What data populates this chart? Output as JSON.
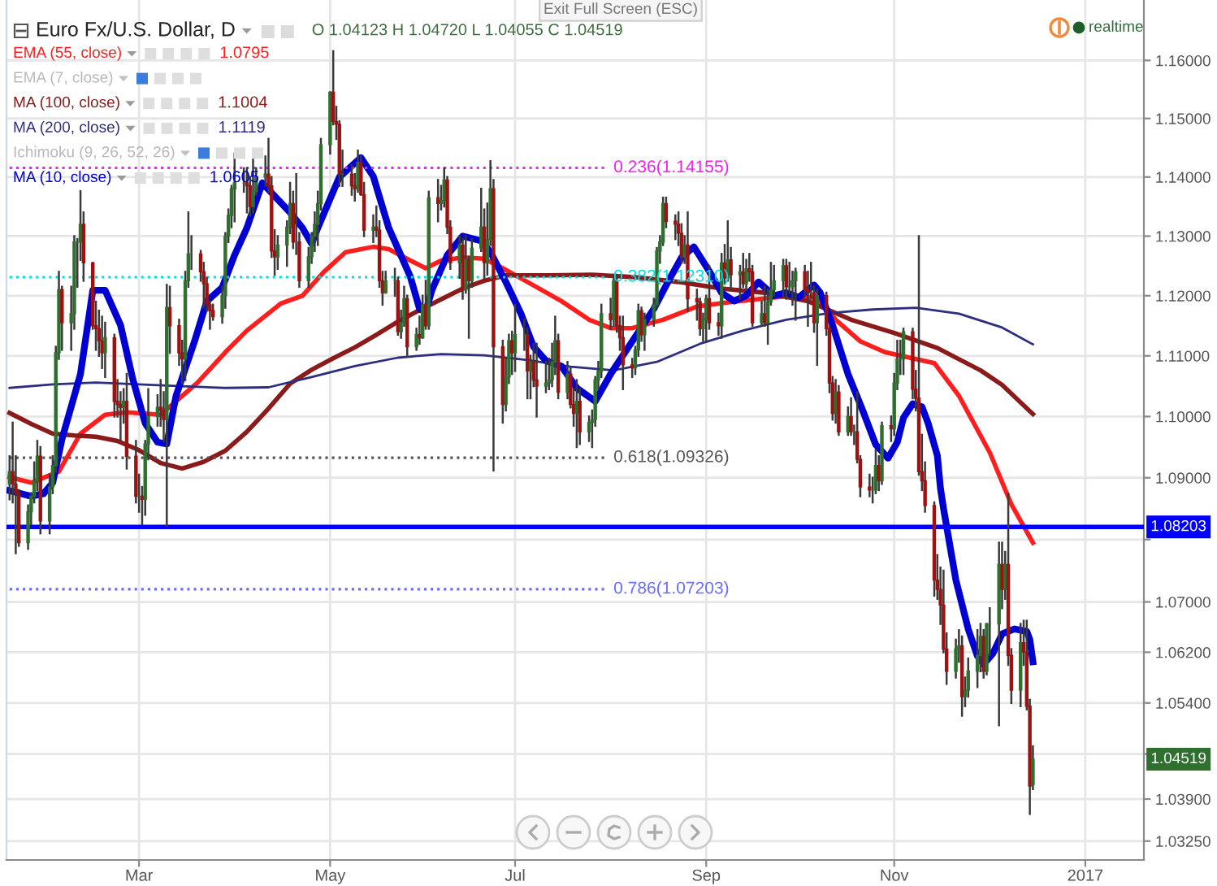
{
  "chart_data": {
    "type": "candlestick",
    "title": "Euro Fx/U.S. Dollar, D",
    "subtitle": "O 1.04123 H 1.04720 L 1.04055 C 1.04519",
    "x": [
      "2016-01-19",
      "2016-01-20",
      "2016-01-21",
      "2016-01-22",
      "2016-01-25",
      "2016-01-26",
      "2016-01-27",
      "2016-01-28",
      "2016-01-29",
      "2016-02-01",
      "2016-02-02",
      "2016-02-03",
      "2016-02-04",
      "2016-02-05",
      "2016-02-08",
      "2016-02-09",
      "2016-02-10",
      "2016-02-11",
      "2016-02-12",
      "2016-02-15",
      "2016-02-16",
      "2016-02-17",
      "2016-02-18",
      "2016-02-19",
      "2016-02-22",
      "2016-02-23",
      "2016-02-24",
      "2016-02-25",
      "2016-02-26",
      "2016-02-29",
      "2016-03-01",
      "2016-03-02",
      "2016-03-03",
      "2016-03-04",
      "2016-03-07",
      "2016-03-08",
      "2016-03-09",
      "2016-03-10",
      "2016-03-11",
      "2016-03-14",
      "2016-03-15",
      "2016-03-16",
      "2016-03-17",
      "2016-03-18",
      "2016-03-21",
      "2016-03-22",
      "2016-03-23",
      "2016-03-24",
      "2016-03-25",
      "2016-03-28",
      "2016-03-29",
      "2016-03-30",
      "2016-03-31",
      "2016-04-01",
      "2016-04-04",
      "2016-04-05",
      "2016-04-06",
      "2016-04-07",
      "2016-04-08",
      "2016-04-11",
      "2016-04-12",
      "2016-04-13",
      "2016-04-14",
      "2016-04-15",
      "2016-04-18",
      "2016-04-19",
      "2016-04-20",
      "2016-04-21",
      "2016-04-22",
      "2016-04-25",
      "2016-04-26",
      "2016-04-27",
      "2016-04-28",
      "2016-04-29",
      "2016-05-02",
      "2016-05-03",
      "2016-05-04",
      "2016-05-05",
      "2016-05-06",
      "2016-05-09",
      "2016-05-10",
      "2016-05-11",
      "2016-05-12",
      "2016-05-13",
      "2016-05-16",
      "2016-05-17",
      "2016-05-18",
      "2016-05-19",
      "2016-05-20",
      "2016-05-23",
      "2016-05-24",
      "2016-05-25",
      "2016-05-26",
      "2016-05-27",
      "2016-05-30",
      "2016-05-31",
      "2016-06-01",
      "2016-06-02",
      "2016-06-03",
      "2016-06-06",
      "2016-06-07",
      "2016-06-08",
      "2016-06-09",
      "2016-06-10",
      "2016-06-13",
      "2016-06-14",
      "2016-06-15",
      "2016-06-16",
      "2016-06-17",
      "2016-06-20",
      "2016-06-21",
      "2016-06-22",
      "2016-06-23",
      "2016-06-24",
      "2016-06-27",
      "2016-06-28",
      "2016-06-29",
      "2016-06-30",
      "2016-07-01",
      "2016-07-04",
      "2016-07-05",
      "2016-07-06",
      "2016-07-07",
      "2016-07-08",
      "2016-07-11",
      "2016-07-12",
      "2016-07-13",
      "2016-07-14",
      "2016-07-15",
      "2016-07-18",
      "2016-07-19",
      "2016-07-20",
      "2016-07-21",
      "2016-07-22",
      "2016-07-25",
      "2016-07-26",
      "2016-07-27",
      "2016-07-28",
      "2016-07-29",
      "2016-08-01",
      "2016-08-02",
      "2016-08-03",
      "2016-08-04",
      "2016-08-05",
      "2016-08-08",
      "2016-08-09",
      "2016-08-10",
      "2016-08-11",
      "2016-08-12",
      "2016-08-15",
      "2016-08-16",
      "2016-08-17",
      "2016-08-18",
      "2016-08-19",
      "2016-08-22",
      "2016-08-23",
      "2016-08-24",
      "2016-08-25",
      "2016-08-26",
      "2016-08-29",
      "2016-08-30",
      "2016-08-31",
      "2016-09-01",
      "2016-09-02",
      "2016-09-05",
      "2016-09-06",
      "2016-09-07",
      "2016-09-08",
      "2016-09-09",
      "2016-09-12",
      "2016-09-13",
      "2016-09-14",
      "2016-09-15",
      "2016-09-16",
      "2016-09-19",
      "2016-09-20",
      "2016-09-21",
      "2016-09-22",
      "2016-09-23",
      "2016-09-26",
      "2016-09-27",
      "2016-09-28",
      "2016-09-29",
      "2016-09-30",
      "2016-10-03",
      "2016-10-04",
      "2016-10-05",
      "2016-10-06",
      "2016-10-07",
      "2016-10-10",
      "2016-10-11",
      "2016-10-12",
      "2016-10-13",
      "2016-10-14",
      "2016-10-17",
      "2016-10-18",
      "2016-10-19",
      "2016-10-20",
      "2016-10-21",
      "2016-10-24",
      "2016-10-25",
      "2016-10-26",
      "2016-10-27",
      "2016-10-28",
      "2016-10-31",
      "2016-11-01",
      "2016-11-02",
      "2016-11-03",
      "2016-11-04",
      "2016-11-07",
      "2016-11-08",
      "2016-11-09",
      "2016-11-10",
      "2016-11-11",
      "2016-11-14",
      "2016-11-15",
      "2016-11-16",
      "2016-11-17",
      "2016-11-18",
      "2016-11-21",
      "2016-11-22",
      "2016-11-23",
      "2016-11-24",
      "2016-11-25",
      "2016-11-28",
      "2016-11-29",
      "2016-11-30",
      "2016-12-01",
      "2016-12-02",
      "2016-12-05",
      "2016-12-06",
      "2016-12-07",
      "2016-12-08",
      "2016-12-09",
      "2016-12-12",
      "2016-12-13",
      "2016-12-14",
      "2016-12-15",
      "2016-12-16"
    ],
    "ohlc": [
      [
        1.089,
        1.0935,
        1.0865,
        1.091
      ],
      [
        1.091,
        1.099,
        1.086,
        1.089
      ],
      [
        1.089,
        1.0935,
        1.0778,
        1.0875
      ],
      [
        1.0875,
        1.088,
        1.079,
        1.0795
      ],
      [
        1.0795,
        1.0855,
        1.0785,
        1.0845
      ],
      [
        1.0845,
        1.0875,
        1.0825,
        1.087
      ],
      [
        1.087,
        1.0925,
        1.086,
        1.0895
      ],
      [
        1.0895,
        1.096,
        1.088,
        1.0935
      ],
      [
        1.0935,
        1.095,
        1.081,
        1.083
      ],
      [
        1.083,
        1.0905,
        1.081,
        1.0885
      ],
      [
        1.0885,
        1.0935,
        1.0875,
        1.092
      ],
      [
        1.092,
        1.1115,
        1.091,
        1.1105
      ],
      [
        1.1105,
        1.124,
        1.1095,
        1.121
      ],
      [
        1.121,
        1.1215,
        1.111,
        1.1155
      ],
      [
        1.1155,
        1.1215,
        1.111,
        1.117
      ],
      [
        1.117,
        1.13,
        1.1145,
        1.129
      ],
      [
        1.129,
        1.1295,
        1.1215,
        1.129
      ],
      [
        1.129,
        1.1376,
        1.126,
        1.132
      ],
      [
        1.132,
        1.134,
        1.1225,
        1.1255
      ],
      [
        1.1255,
        1.1255,
        1.1145,
        1.115
      ],
      [
        1.115,
        1.119,
        1.111,
        1.1145
      ],
      [
        1.1145,
        1.1175,
        1.11,
        1.1125
      ],
      [
        1.1125,
        1.1165,
        1.108,
        1.1105
      ],
      [
        1.1105,
        1.1155,
        1.1065,
        1.113
      ],
      [
        1.113,
        1.1135,
        1.1,
        1.1025
      ],
      [
        1.1025,
        1.106,
        1.1,
        1.102
      ],
      [
        1.102,
        1.104,
        1.096,
        1.1015
      ],
      [
        1.1015,
        1.1045,
        1.099,
        1.1025
      ],
      [
        1.1025,
        1.107,
        1.0915,
        1.0935
      ],
      [
        1.0935,
        1.096,
        1.086,
        1.087
      ],
      [
        1.087,
        1.0905,
        1.0845,
        1.087
      ],
      [
        1.087,
        1.0885,
        1.0825,
        1.0865
      ],
      [
        1.0865,
        1.096,
        1.084,
        1.0955
      ],
      [
        1.0955,
        1.1045,
        1.093,
        1.1
      ],
      [
        1.1,
        1.1035,
        1.0985,
        1.1015
      ],
      [
        1.1015,
        1.106,
        1.0985,
        1.101
      ],
      [
        1.101,
        1.104,
        1.096,
        1.0995
      ],
      [
        1.0995,
        1.1218,
        1.0822,
        1.118
      ],
      [
        1.118,
        1.1215,
        1.1105,
        1.115
      ],
      [
        1.115,
        1.116,
        1.1085,
        1.1105
      ],
      [
        1.1105,
        1.1125,
        1.1055,
        1.1095
      ],
      [
        1.1095,
        1.124,
        1.106,
        1.1225
      ],
      [
        1.1225,
        1.134,
        1.1215,
        1.127
      ],
      [
        1.127,
        1.13,
        1.1245,
        1.127
      ],
      [
        1.127,
        1.1275,
        1.1225,
        1.124
      ],
      [
        1.124,
        1.1255,
        1.118,
        1.122
      ],
      [
        1.122,
        1.123,
        1.1175,
        1.1185
      ],
      [
        1.1185,
        1.119,
        1.1145,
        1.1175
      ],
      [
        1.1175,
        1.1185,
        1.116,
        1.1165
      ],
      [
        1.1165,
        1.1215,
        1.1155,
        1.12
      ],
      [
        1.12,
        1.1305,
        1.118,
        1.13
      ],
      [
        1.13,
        1.1345,
        1.129,
        1.1335
      ],
      [
        1.1335,
        1.1385,
        1.1315,
        1.138
      ],
      [
        1.138,
        1.144,
        1.1325,
        1.139
      ],
      [
        1.139,
        1.1415,
        1.1375,
        1.139
      ],
      [
        1.139,
        1.1415,
        1.134,
        1.1385
      ],
      [
        1.1385,
        1.14,
        1.1335,
        1.135
      ],
      [
        1.135,
        1.144,
        1.134,
        1.1375
      ],
      [
        1.1375,
        1.1415,
        1.137,
        1.14
      ],
      [
        1.14,
        1.1435,
        1.1385,
        1.1405
      ],
      [
        1.1405,
        1.1465,
        1.1375,
        1.1385
      ],
      [
        1.1385,
        1.14,
        1.1265,
        1.1275
      ],
      [
        1.1275,
        1.131,
        1.1235,
        1.1265
      ],
      [
        1.1265,
        1.13,
        1.1245,
        1.1285
      ],
      [
        1.1285,
        1.1325,
        1.125,
        1.1315
      ],
      [
        1.1315,
        1.139,
        1.1305,
        1.1355
      ],
      [
        1.1355,
        1.1375,
        1.128,
        1.129
      ],
      [
        1.129,
        1.1405,
        1.127,
        1.129
      ],
      [
        1.129,
        1.1305,
        1.1215,
        1.1225
      ],
      [
        1.1225,
        1.128,
        1.1215,
        1.1265
      ],
      [
        1.1265,
        1.1305,
        1.1255,
        1.13
      ],
      [
        1.13,
        1.134,
        1.1275,
        1.132
      ],
      [
        1.132,
        1.1375,
        1.1285,
        1.1355
      ],
      [
        1.1355,
        1.1465,
        1.1345,
        1.1455
      ],
      [
        1.1455,
        1.1545,
        1.144,
        1.1545
      ],
      [
        1.1545,
        1.1616,
        1.149,
        1.1495
      ],
      [
        1.1495,
        1.152,
        1.1465,
        1.149
      ],
      [
        1.149,
        1.1495,
        1.1385,
        1.1405
      ],
      [
        1.1405,
        1.1445,
        1.1385,
        1.1405
      ],
      [
        1.1405,
        1.142,
        1.137,
        1.1385
      ],
      [
        1.1385,
        1.1405,
        1.136,
        1.138
      ],
      [
        1.138,
        1.1445,
        1.1375,
        1.1425
      ],
      [
        1.1425,
        1.1435,
        1.137,
        1.137
      ],
      [
        1.137,
        1.139,
        1.13,
        1.131
      ],
      [
        1.131,
        1.1335,
        1.129,
        1.1315
      ],
      [
        1.1315,
        1.135,
        1.13,
        1.131
      ],
      [
        1.131,
        1.1325,
        1.1215,
        1.1225
      ],
      [
        1.1225,
        1.124,
        1.1185,
        1.1205
      ],
      [
        1.1205,
        1.124,
        1.1205,
        1.1225
      ],
      [
        1.1225,
        1.1245,
        1.12,
        1.1225
      ],
      [
        1.1225,
        1.123,
        1.1135,
        1.114
      ],
      [
        1.114,
        1.1175,
        1.113,
        1.1155
      ],
      [
        1.1155,
        1.1215,
        1.115,
        1.1195
      ],
      [
        1.1195,
        1.12,
        1.11,
        1.1115
      ],
      [
        1.1115,
        1.1145,
        1.111,
        1.1135
      ],
      [
        1.1135,
        1.1165,
        1.112,
        1.113
      ],
      [
        1.113,
        1.12,
        1.113,
        1.1185
      ],
      [
        1.1185,
        1.1225,
        1.1145,
        1.115
      ],
      [
        1.115,
        1.1375,
        1.1145,
        1.1365
      ],
      [
        1.1365,
        1.1395,
        1.1325,
        1.1355
      ],
      [
        1.1355,
        1.1385,
        1.1345,
        1.136
      ],
      [
        1.136,
        1.1415,
        1.135,
        1.1395
      ],
      [
        1.1395,
        1.14,
        1.1305,
        1.1315
      ],
      [
        1.1315,
        1.1325,
        1.1245,
        1.1255
      ],
      [
        1.1255,
        1.13,
        1.123,
        1.1285
      ],
      [
        1.1285,
        1.1295,
        1.1195,
        1.121
      ],
      [
        1.121,
        1.13,
        1.1205,
        1.126
      ],
      [
        1.126,
        1.1265,
        1.113,
        1.1225
      ],
      [
        1.1225,
        1.1295,
        1.1215,
        1.128
      ],
      [
        1.128,
        1.138,
        1.1275,
        1.1315
      ],
      [
        1.1315,
        1.1345,
        1.123,
        1.1255
      ],
      [
        1.1255,
        1.1355,
        1.1235,
        1.1295
      ],
      [
        1.1295,
        1.1427,
        1.1285,
        1.138
      ],
      [
        1.138,
        1.1395,
        1.0912,
        1.1115
      ],
      [
        1.1115,
        1.1125,
        1.099,
        1.102
      ],
      [
        1.102,
        1.1095,
        1.101,
        1.1065
      ],
      [
        1.1065,
        1.1135,
        1.1055,
        1.1125
      ],
      [
        1.1125,
        1.114,
        1.107,
        1.1105
      ],
      [
        1.1105,
        1.1185,
        1.1075,
        1.1135
      ],
      [
        1.1135,
        1.116,
        1.111,
        1.1135
      ],
      [
        1.1135,
        1.1145,
        1.103,
        1.1075
      ],
      [
        1.1075,
        1.11,
        1.103,
        1.109
      ],
      [
        1.109,
        1.112,
        1.105,
        1.106
      ],
      [
        1.106,
        1.112,
        1.1,
        1.105
      ],
      [
        1.105,
        1.109,
        1.104,
        1.1055
      ],
      [
        1.1055,
        1.1095,
        1.1045,
        1.106
      ],
      [
        1.106,
        1.112,
        1.105,
        1.109
      ],
      [
        1.109,
        1.1165,
        1.107,
        1.1125
      ],
      [
        1.1125,
        1.1135,
        1.103,
        1.104
      ],
      [
        1.104,
        1.109,
        1.103,
        1.107
      ],
      [
        1.107,
        1.108,
        1.1015,
        1.102
      ],
      [
        1.102,
        1.1045,
        1.0985,
        1.1005
      ],
      [
        1.1005,
        1.106,
        1.095,
        1.1025
      ],
      [
        1.1025,
        1.1045,
        1.0955,
        1.0975
      ],
      [
        1.0975,
        1.1,
        1.096,
        1.099
      ],
      [
        1.099,
        1.101,
        1.095,
        1.0995
      ],
      [
        1.0995,
        1.1065,
        1.0985,
        1.106
      ],
      [
        1.106,
        1.109,
        1.1045,
        1.1075
      ],
      [
        1.1075,
        1.1185,
        1.1065,
        1.117
      ],
      [
        1.117,
        1.1195,
        1.1145,
        1.116
      ],
      [
        1.116,
        1.1235,
        1.115,
        1.1225
      ],
      [
        1.1225,
        1.1235,
        1.114,
        1.115
      ],
      [
        1.115,
        1.1165,
        1.111,
        1.113
      ],
      [
        1.113,
        1.1165,
        1.1045,
        1.1085
      ],
      [
        1.1085,
        1.1095,
        1.1065,
        1.108
      ],
      [
        1.108,
        1.1115,
        1.107,
        1.111
      ],
      [
        1.111,
        1.1185,
        1.11,
        1.1175
      ],
      [
        1.1175,
        1.118,
        1.1125,
        1.1135
      ],
      [
        1.1135,
        1.117,
        1.111,
        1.116
      ],
      [
        1.116,
        1.1195,
        1.115,
        1.1185
      ],
      [
        1.1185,
        1.128,
        1.118,
        1.1275
      ],
      [
        1.1275,
        1.13,
        1.1255,
        1.129
      ],
      [
        1.129,
        1.1365,
        1.1285,
        1.1355
      ],
      [
        1.1355,
        1.1365,
        1.1315,
        1.1325
      ],
      [
        1.1325,
        1.1335,
        1.1295,
        1.132
      ],
      [
        1.132,
        1.134,
        1.1285,
        1.1305
      ],
      [
        1.1305,
        1.132,
        1.1255,
        1.1265
      ],
      [
        1.1265,
        1.13,
        1.1255,
        1.1285
      ],
      [
        1.1285,
        1.134,
        1.1175,
        1.1195
      ],
      [
        1.1195,
        1.121,
        1.116,
        1.119
      ],
      [
        1.119,
        1.1195,
        1.1135,
        1.1145
      ],
      [
        1.1145,
        1.117,
        1.1125,
        1.116
      ],
      [
        1.116,
        1.12,
        1.1125,
        1.1195
      ],
      [
        1.1195,
        1.125,
        1.1145,
        1.1155
      ],
      [
        1.1155,
        1.117,
        1.1135,
        1.115
      ],
      [
        1.115,
        1.127,
        1.113,
        1.1255
      ],
      [
        1.1255,
        1.1285,
        1.122,
        1.123
      ],
      [
        1.123,
        1.1325,
        1.1225,
        1.126
      ],
      [
        1.126,
        1.128,
        1.121,
        1.1235
      ],
      [
        1.1235,
        1.125,
        1.1195,
        1.124
      ],
      [
        1.124,
        1.127,
        1.1215,
        1.122
      ],
      [
        1.122,
        1.126,
        1.121,
        1.1245
      ],
      [
        1.1245,
        1.127,
        1.1225,
        1.124
      ],
      [
        1.124,
        1.125,
        1.115,
        1.1155
      ],
      [
        1.1155,
        1.119,
        1.115,
        1.117
      ],
      [
        1.117,
        1.1215,
        1.115,
        1.1155
      ],
      [
        1.1155,
        1.121,
        1.112,
        1.119
      ],
      [
        1.119,
        1.1255,
        1.1185,
        1.121
      ],
      [
        1.121,
        1.125,
        1.12,
        1.1225
      ],
      [
        1.1225,
        1.126,
        1.12,
        1.125
      ],
      [
        1.125,
        1.126,
        1.1195,
        1.1215
      ],
      [
        1.1215,
        1.1255,
        1.1205,
        1.1215
      ],
      [
        1.1215,
        1.124,
        1.1185,
        1.1225
      ],
      [
        1.1225,
        1.1245,
        1.116,
        1.124
      ],
      [
        1.124,
        1.125,
        1.12,
        1.121
      ],
      [
        1.121,
        1.124,
        1.115,
        1.1205
      ],
      [
        1.1205,
        1.1255,
        1.1195,
        1.1205
      ],
      [
        1.1205,
        1.1215,
        1.114,
        1.1155
      ],
      [
        1.1155,
        1.121,
        1.1085,
        1.12
      ],
      [
        1.12,
        1.1205,
        1.1135,
        1.1145
      ],
      [
        1.1145,
        1.115,
        1.104,
        1.1055
      ],
      [
        1.1055,
        1.1065,
        1.0995,
        1.1005
      ],
      [
        1.1005,
        1.106,
        1.099,
        1.104
      ],
      [
        1.104,
        1.105,
        1.097,
        1.0975
      ],
      [
        1.0975,
        1.1015,
        1.097,
        1.1
      ],
      [
        1.1,
        1.103,
        1.097,
        1.0975
      ],
      [
        1.0975,
        1.0985,
        1.0955,
        1.0975
      ],
      [
        1.0975,
        1.104,
        1.0925,
        1.093
      ],
      [
        1.093,
        1.0935,
        1.087,
        1.0885
      ],
      [
        1.0885,
        1.0905,
        1.087,
        1.088
      ],
      [
        1.088,
        1.09,
        1.086,
        1.088
      ],
      [
        1.088,
        1.0945,
        1.0875,
        1.092
      ],
      [
        1.092,
        1.0935,
        1.088,
        1.0895
      ],
      [
        1.0895,
        1.099,
        1.089,
        1.0985
      ],
      [
        1.0985,
        1.1,
        1.096,
        1.098
      ],
      [
        1.098,
        1.107,
        1.097,
        1.1055
      ],
      [
        1.1055,
        1.1125,
        1.1045,
        1.1095
      ],
      [
        1.1095,
        1.1125,
        1.107,
        1.1095
      ],
      [
        1.1095,
        1.1145,
        1.107,
        1.114
      ],
      [
        1.114,
        1.1145,
        1.103,
        1.1045
      ],
      [
        1.1045,
        1.1075,
        1.101,
        1.103
      ],
      [
        1.103,
        1.13,
        1.0905,
        1.091
      ],
      [
        1.091,
        1.097,
        1.088,
        1.0895
      ],
      [
        1.0895,
        1.0925,
        1.0845,
        1.0855
      ],
      [
        1.0855,
        1.086,
        1.071,
        1.0735
      ],
      [
        1.0735,
        1.0775,
        1.0705,
        1.072
      ],
      [
        1.072,
        1.0755,
        1.0665,
        1.0695
      ],
      [
        1.0695,
        1.075,
        1.062,
        1.0625
      ],
      [
        1.0625,
        1.065,
        1.057,
        1.059
      ],
      [
        1.059,
        1.064,
        1.058,
        1.0625
      ],
      [
        1.0625,
        1.0655,
        1.0605,
        1.063
      ],
      [
        1.063,
        1.0645,
        1.052,
        1.055
      ],
      [
        1.055,
        1.058,
        1.0535,
        1.056
      ],
      [
        1.056,
        1.061,
        1.055,
        1.059
      ],
      [
        1.059,
        1.0655,
        1.0565,
        1.0615
      ],
      [
        1.0615,
        1.0665,
        1.059,
        1.0645
      ],
      [
        1.0645,
        1.0655,
        1.058,
        1.059
      ],
      [
        1.059,
        1.0665,
        1.0585,
        1.0665
      ],
      [
        1.0665,
        1.069,
        1.0615,
        1.0665
      ],
      [
        1.0665,
        1.0795,
        1.0505,
        1.076
      ],
      [
        1.076,
        1.0795,
        1.069,
        1.072
      ],
      [
        1.072,
        1.078,
        1.0705,
        1.076
      ],
      [
        1.076,
        1.0874,
        1.06,
        1.0615
      ],
      [
        1.0615,
        1.0625,
        1.054,
        1.056
      ],
      [
        1.056,
        1.0665,
        1.0535,
        1.0635
      ],
      [
        1.0635,
        1.067,
        1.06,
        1.062
      ],
      [
        1.062,
        1.067,
        1.053,
        1.0535
      ],
      [
        1.0535,
        1.0545,
        1.0367,
        1.041
      ],
      [
        1.04123,
        1.0472,
        1.04055,
        1.04519
      ]
    ],
    "colors": [
      "#2f6f2f",
      "#9c1212",
      "#9c1212",
      "#9c1212",
      "#2f6f2f",
      "#2f6f2f",
      "#2f6f2f",
      "#2f6f2f",
      "#9c1212",
      "#2f6f2f",
      "#2f6f2f",
      "#2f6f2f",
      "#2f6f2f",
      "#9c1212",
      "#2f6f2f",
      "#2f6f2f",
      "#2f6f2f",
      "#2f6f2f",
      "#9c1212",
      "#9c1212",
      "#9c1212",
      "#9c1212",
      "#9c1212",
      "#2f6f2f",
      "#9c1212",
      "#9c1212",
      "#9c1212",
      "#2f6f2f",
      "#9c1212",
      "#9c1212",
      "#2f6f2f",
      "#9c1212",
      "#2f6f2f",
      "#2f6f2f",
      "#2f6f2f",
      "#9c1212",
      "#9c1212",
      "#2f6f2f",
      "#9c1212",
      "#9c1212",
      "#9c1212",
      "#2f6f2f",
      "#2f6f2f",
      "#2f6f2f",
      "#9c1212",
      "#9c1212",
      "#9c1212",
      "#9c1212",
      "#9c1212",
      "#2f6f2f",
      "#2f6f2f",
      "#2f6f2f",
      "#2f6f2f",
      "#2f6f2f",
      "#2f6f2f",
      "#9c1212",
      "#9c1212",
      "#2f6f2f",
      "#2f6f2f",
      "#2f6f2f",
      "#9c1212",
      "#9c1212",
      "#9c1212",
      "#2f6f2f",
      "#2f6f2f",
      "#2f6f2f",
      "#9c1212",
      "#2f6f2f",
      "#9c1212",
      "#2f6f2f",
      "#2f6f2f",
      "#2f6f2f",
      "#2f6f2f",
      "#2f6f2f",
      "#2f6f2f",
      "#9c1212",
      "#9c1212",
      "#9c1212",
      "#2f6f2f",
      "#9c1212",
      "#9c1212",
      "#2f6f2f",
      "#9c1212",
      "#9c1212",
      "#2f6f2f",
      "#9c1212",
      "#9c1212",
      "#9c1212",
      "#2f6f2f",
      "#2f6f2f",
      "#9c1212",
      "#2f6f2f",
      "#2f6f2f",
      "#9c1212",
      "#2f6f2f",
      "#9c1212",
      "#2f6f2f",
      "#9c1212",
      "#2f6f2f",
      "#9c1212",
      "#2f6f2f",
      "#2f6f2f",
      "#9c1212",
      "#9c1212",
      "#2f6f2f",
      "#9c1212",
      "#2f6f2f",
      "#9c1212",
      "#2f6f2f",
      "#2f6f2f",
      "#9c1212",
      "#2f6f2f",
      "#2f6f2f",
      "#9c1212",
      "#9c1212",
      "#2f6f2f",
      "#2f6f2f",
      "#9c1212",
      "#2f6f2f",
      "#2f6f2f",
      "#9c1212",
      "#2f6f2f",
      "#9c1212",
      "#9c1212",
      "#2f6f2f",
      "#2f6f2f",
      "#2f6f2f",
      "#2f6f2f",
      "#9c1212",
      "#2f6f2f",
      "#9c1212",
      "#9c1212",
      "#2f6f2f",
      "#9c1212",
      "#2f6f2f",
      "#2f6f2f",
      "#2f6f2f",
      "#2f6f2f",
      "#2f6f2f",
      "#9c1212",
      "#2f6f2f",
      "#9c1212",
      "#9c1212",
      "#9c1212",
      "#9c1212",
      "#2f6f2f",
      "#2f6f2f",
      "#9c1212",
      "#2f6f2f",
      "#2f6f2f",
      "#2f6f2f",
      "#2f6f2f",
      "#2f6f2f",
      "#9c1212",
      "#9c1212",
      "#9c1212",
      "#9c1212",
      "#2f6f2f",
      "#9c1212",
      "#9c1212",
      "#9c1212",
      "#2f6f2f",
      "#2f6f2f",
      "#9c1212",
      "#9c1212",
      "#2f6f2f",
      "#9c1212",
      "#2f6f2f",
      "#9c1212",
      "#2f6f2f",
      "#9c1212",
      "#2f6f2f",
      "#9c1212",
      "#9c1212",
      "#2f6f2f",
      "#9c1212",
      "#2f6f2f",
      "#2f6f2f",
      "#2f6f2f",
      "#2f6f2f",
      "#9c1212",
      "#2f6f2f",
      "#2f6f2f",
      "#2f6f2f",
      "#9c1212",
      "#9c1212",
      "#2f6f2f",
      "#9c1212",
      "#2f6f2f",
      "#9c1212",
      "#9c1212",
      "#9c1212",
      "#2f6f2f",
      "#9c1212",
      "#2f6f2f",
      "#9c1212",
      "#2f6f2f",
      "#9c1212",
      "#9c1212",
      "#9c1212",
      "#2f6f2f",
      "#2f6f2f",
      "#9c1212",
      "#2f6f2f",
      "#9c1212",
      "#2f6f2f",
      "#2f6f2f",
      "#2f6f2f",
      "#2f6f2f",
      "#9c1212",
      "#9c1212",
      "#9c1212",
      "#9c1212",
      "#9c1212",
      "#9c1212",
      "#9c1212",
      "#9c1212",
      "#9c1212",
      "#9c1212",
      "#2f6f2f",
      "#2f6f2f",
      "#9c1212",
      "#2f6f2f",
      "#2f6f2f",
      "#2f6f2f",
      "#2f6f2f",
      "#9c1212",
      "#2f6f2f",
      "#2f6f2f",
      "#2f6f2f",
      "#9c1212",
      "#2f6f2f",
      "#9c1212",
      "#9c1212",
      "#2f6f2f",
      "#9c1212",
      "#9c1212",
      "#9c1212",
      "#2f6f2f"
    ],
    "series": [
      {
        "name": "EMA (55, close)",
        "type": "line",
        "color": "#ff1e1e",
        "x": [
          "2016-01-19",
          "2016-01-26",
          "2016-02-04",
          "2016-02-11",
          "2016-02-19",
          "2016-02-26",
          "2016-03-08",
          "2016-03-13",
          "2016-03-20",
          "2016-03-29",
          "2016-04-05",
          "2016-04-16",
          "2016-04-23",
          "2016-04-30",
          "2016-05-07",
          "2016-05-16",
          "2016-05-21",
          "2016-05-28",
          "2016-06-02",
          "2016-06-07",
          "2016-06-14",
          "2016-06-21",
          "2016-06-27",
          "2016-07-05",
          "2016-07-16",
          "2016-07-25",
          "2016-08-01",
          "2016-08-08",
          "2016-08-18",
          "2016-08-29",
          "2016-09-08",
          "2016-09-19",
          "2016-09-29",
          "2016-10-07",
          "2016-10-13",
          "2016-10-21",
          "2016-10-29",
          "2016-11-06",
          "2016-11-14",
          "2016-11-22",
          "2016-12-02",
          "2016-12-09",
          "2016-12-16"
        ],
        "values": [
          1.0901,
          1.0892,
          1.091,
          1.0972,
          1.1003,
          1.1007,
          1.1003,
          1.1025,
          1.1056,
          1.1106,
          1.1142,
          1.1187,
          1.12,
          1.124,
          1.1273,
          1.1282,
          1.1278,
          1.1259,
          1.1246,
          1.1259,
          1.1264,
          1.1262,
          1.1246,
          1.1223,
          1.1191,
          1.116,
          1.1146,
          1.1146,
          1.116,
          1.1182,
          1.1189,
          1.1195,
          1.12,
          1.1197,
          1.116,
          1.1124,
          1.1106,
          1.1097,
          1.1088,
          1.1034,
          1.0941,
          1.0857,
          1.0795
        ]
      },
      {
        "name": "MA (100, close)",
        "type": "line",
        "color": "#8b1a1a",
        "x": [
          "2016-01-19",
          "2016-01-26",
          "2016-02-02",
          "2016-02-09",
          "2016-02-16",
          "2016-02-23",
          "2016-03-01",
          "2016-03-08",
          "2016-03-15",
          "2016-03-22",
          "2016-03-29",
          "2016-04-05",
          "2016-04-12",
          "2016-04-19",
          "2016-04-26",
          "2016-05-03",
          "2016-05-10",
          "2016-05-17",
          "2016-05-24",
          "2016-05-31",
          "2016-06-07",
          "2016-06-14",
          "2016-06-21",
          "2016-06-28",
          "2016-07-12",
          "2016-07-26",
          "2016-08-09",
          "2016-08-23",
          "2016-09-06",
          "2016-09-20",
          "2016-10-04",
          "2016-10-18",
          "2016-11-01",
          "2016-11-15",
          "2016-11-29",
          "2016-12-06",
          "2016-12-16"
        ],
        "values": [
          1.1006,
          1.0988,
          1.0972,
          1.0969,
          1.0967,
          1.096,
          1.0945,
          1.0924,
          1.0915,
          1.0926,
          1.0944,
          1.0975,
          1.1013,
          1.1054,
          1.1077,
          1.1096,
          1.1114,
          1.1135,
          1.1157,
          1.1176,
          1.1194,
          1.1212,
          1.1225,
          1.1234,
          1.1234,
          1.1235,
          1.1231,
          1.1223,
          1.1212,
          1.1205,
          1.1191,
          1.116,
          1.1138,
          1.1113,
          1.1076,
          1.1052,
          1.1004
        ]
      },
      {
        "name": "MA (200, close)",
        "type": "line",
        "color": "#2e2e80",
        "x": [
          "2016-01-19",
          "2016-02-02",
          "2016-02-16",
          "2016-03-01",
          "2016-03-15",
          "2016-03-29",
          "2016-04-12",
          "2016-04-26",
          "2016-05-10",
          "2016-05-24",
          "2016-06-07",
          "2016-06-21",
          "2016-07-05",
          "2016-07-19",
          "2016-08-02",
          "2016-08-16",
          "2016-08-30",
          "2016-09-13",
          "2016-09-27",
          "2016-10-11",
          "2016-10-25",
          "2016-11-08",
          "2016-11-22",
          "2016-12-06",
          "2016-12-16"
        ],
        "values": [
          1.1047,
          1.1053,
          1.1056,
          1.1053,
          1.105,
          1.1047,
          1.1048,
          1.1065,
          1.1083,
          1.1097,
          1.1103,
          1.1101,
          1.1093,
          1.1082,
          1.1076,
          1.109,
          1.112,
          1.1142,
          1.116,
          1.1171,
          1.1177,
          1.118,
          1.117,
          1.1147,
          1.1119
        ]
      },
      {
        "name": "MA (10, close)",
        "type": "line",
        "color": "#0000d2",
        "x": [
          "2016-01-19",
          "2016-01-26",
          "2016-01-30",
          "2016-02-02",
          "2016-02-05",
          "2016-02-11",
          "2016-02-15",
          "2016-02-19",
          "2016-02-24",
          "2016-02-28",
          "2016-03-03",
          "2016-03-07",
          "2016-03-10",
          "2016-03-13",
          "2016-03-19",
          "2016-03-23",
          "2016-03-28",
          "2016-04-01",
          "2016-04-05",
          "2016-04-10",
          "2016-04-15",
          "2016-04-19",
          "2016-04-23",
          "2016-04-26",
          "2016-04-28",
          "2016-05-05",
          "2016-05-12",
          "2016-05-16",
          "2016-05-21",
          "2016-05-28",
          "2016-05-31",
          "2016-06-02",
          "2016-06-04",
          "2016-06-09",
          "2016-06-14",
          "2016-06-20",
          "2016-06-23",
          "2016-06-28",
          "2016-07-03",
          "2016-07-07",
          "2016-07-11",
          "2016-07-16",
          "2016-07-21",
          "2016-07-27",
          "2016-08-01",
          "2016-08-08",
          "2016-08-15",
          "2016-08-20",
          "2016-08-24",
          "2016-08-28",
          "2016-09-02",
          "2016-09-06",
          "2016-09-10",
          "2016-09-14",
          "2016-09-18",
          "2016-09-23",
          "2016-09-27",
          "2016-10-01",
          "2016-10-06",
          "2016-10-08",
          "2016-10-12",
          "2016-10-17",
          "2016-10-22",
          "2016-10-26",
          "2016-10-30",
          "2016-11-02",
          "2016-11-04",
          "2016-11-07",
          "2016-11-10",
          "2016-11-12",
          "2016-11-15",
          "2016-11-16",
          "2016-11-17",
          "2016-11-21",
          "2016-11-25",
          "2016-11-28",
          "2016-11-30",
          "2016-12-03",
          "2016-12-06",
          "2016-12-10",
          "2016-12-14",
          "2016-12-15",
          "2016-12-16"
        ],
        "values": [
          1.0879,
          1.087,
          1.0874,
          1.0892,
          1.0963,
          1.107,
          1.1209,
          1.1209,
          1.1151,
          1.1061,
          1.0989,
          1.0958,
          1.0955,
          1.1034,
          1.1124,
          1.1191,
          1.1214,
          1.1268,
          1.1314,
          1.139,
          1.1362,
          1.134,
          1.1314,
          1.1287,
          1.1314,
          1.14,
          1.1433,
          1.1401,
          1.1314,
          1.1232,
          1.1178,
          1.1173,
          1.1209,
          1.1268,
          1.13,
          1.1292,
          1.1273,
          1.1223,
          1.1169,
          1.1115,
          1.1092,
          1.1083,
          1.1047,
          1.1025,
          1.107,
          1.1124,
          1.1178,
          1.1227,
          1.1264,
          1.1282,
          1.1241,
          1.1205,
          1.1191,
          1.12,
          1.1223,
          1.12,
          1.1205,
          1.1197,
          1.1218,
          1.1205,
          1.1151,
          1.107,
          1.1007,
          1.0954,
          1.0932,
          1.0958,
          1.0998,
          1.1021,
          1.1016,
          1.0989,
          1.0936,
          1.0883,
          1.085,
          1.0735,
          1.0657,
          1.0614,
          1.0601,
          1.0618,
          1.0649,
          1.0657,
          1.0653,
          1.064,
          1.0605
        ]
      },
      {
        "type": "line",
        "color": "#ee22ee",
        "line_style": "dotted",
        "x": [
          "2016-01-19",
          "2016-07-30"
        ],
        "values": [
          1.14155,
          1.14155
        ]
      },
      {
        "type": "line",
        "color": "#00dede",
        "line_style": "dotted",
        "x": [
          "2016-01-19",
          "2016-07-30"
        ],
        "values": [
          1.1231,
          1.1231
        ]
      },
      {
        "type": "line",
        "color": "#555555",
        "line_style": "dotted",
        "x": [
          "2016-01-19",
          "2016-07-30"
        ],
        "values": [
          1.09326,
          1.09326
        ]
      },
      {
        "type": "line",
        "color": "#6a6aff",
        "line_style": "dotted",
        "x": [
          "2016-01-19",
          "2016-07-30"
        ],
        "values": [
          1.07203,
          1.07203
        ]
      }
    ],
    "ref_lines": [
      {
        "axis": "y",
        "value": 1.08203,
        "label": "1.08203",
        "color": "#0000ff"
      }
    ],
    "annotations": [
      "Exit Full Screen (ESC)",
      "realtime",
      "1.04519",
      "1.0795",
      "1.1004",
      "1.1119",
      "1.0605",
      "EMA (7, close)",
      "Ichimoku (9, 26, 52, 26)",
      {
        "text": "0.236(1.14155)",
        "x": "2016-07-30",
        "y": 1.14155
      },
      {
        "text": "0.382(1.12310)",
        "x": "2016-07-30",
        "y": 1.1231
      },
      {
        "text": "0.618(1.09326)",
        "x": "2016-07-30",
        "y": 1.09326
      },
      {
        "text": "0.786(1.07203)",
        "x": "2016-07-30",
        "y": 1.07203
      }
    ],
    "xlim": [
      "2016-01-18",
      "2017-01-21"
    ],
    "xticks": [
      {
        "value": "2016-03-01",
        "label": "Mar"
      },
      {
        "value": "2016-05-02",
        "label": "May"
      },
      {
        "value": "2016-07-01",
        "label": "Jul"
      },
      {
        "value": "2016-09-01",
        "label": "Sep"
      },
      {
        "value": "2016-11-01",
        "label": "Nov"
      },
      {
        "value": "2017-01-02",
        "label": "2017"
      }
    ],
    "ylim": [
      1.0296,
      1.1705
    ],
    "yticks": [
      {
        "value": 1.16,
        "label": "1.16000"
      },
      {
        "value": 1.15,
        "label": "1.15000"
      },
      {
        "value": 1.14,
        "label": "1.14000"
      },
      {
        "value": 1.13,
        "label": "1.13000"
      },
      {
        "value": 1.12,
        "label": "1.12000"
      },
      {
        "value": 1.11,
        "label": "1.11000"
      },
      {
        "value": 1.1,
        "label": "1.10000"
      },
      {
        "value": 1.09,
        "label": "1.09000"
      },
      {
        "value": 1.08,
        "label": null
      },
      {
        "value": 1.07,
        "label": "1.07000"
      },
      {
        "value": 1.062,
        "label": "1.06200"
      },
      {
        "value": 1.054,
        "label": "1.05400"
      },
      {
        "value": 1.046,
        "label": null
      },
      {
        "value": 1.039,
        "label": "1.03900"
      },
      {
        "value": 1.0325,
        "label": "1.03250"
      }
    ],
    "log": true,
    "grid": true,
    "legend": "top left"
  }
}
